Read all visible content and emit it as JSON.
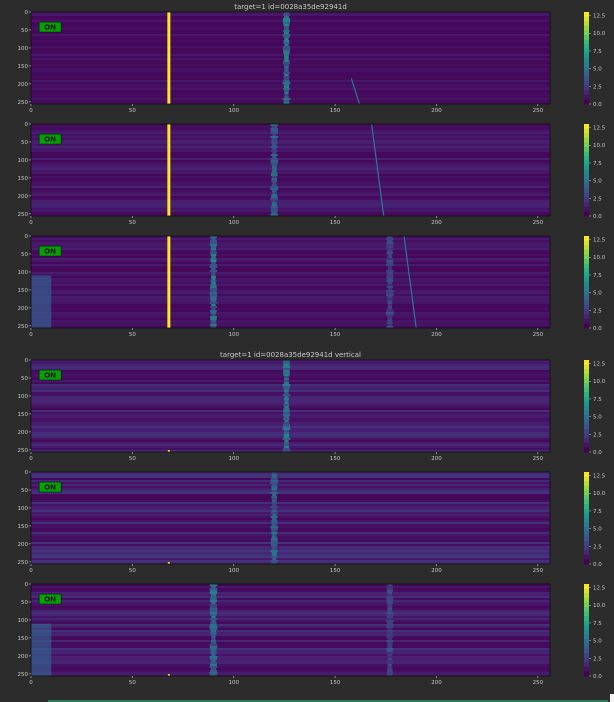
{
  "colors": {
    "background": "#2c2c2c",
    "viridis_low": "#440154",
    "viridis_high": "#fde725",
    "on_badge_bg": "#00a000",
    "axis_text": "#c8c8c8"
  },
  "chart_data": [
    {
      "type": "heatmap",
      "title": "target=1  id=0028a35de92941d",
      "badge": "ON",
      "x_ticks": [
        "0",
        "50",
        "100",
        "150",
        "200",
        "250"
      ],
      "y_ticks": [
        "0",
        "50",
        "100",
        "150",
        "200",
        "250"
      ],
      "xlim": [
        0,
        256
      ],
      "ylim": [
        0,
        256
      ],
      "colorbar": {
        "ticks": [
          "12.5",
          "10.0",
          "7.5",
          "5.0",
          "2.5",
          "0.0"
        ],
        "range": [
          0,
          13
        ]
      },
      "features": {
        "yellow_column_x": 68,
        "bright_bands": [
          {
            "x": 126,
            "intensity": 0.55
          }
        ],
        "diagonal_lines": [
          [
            158,
            185,
            162,
            256
          ]
        ],
        "left_edge_glow": false,
        "base_noise": 0.08
      }
    },
    {
      "type": "heatmap",
      "title": "",
      "badge": "ON",
      "x_ticks": [
        "0",
        "50",
        "100",
        "150",
        "200",
        "250"
      ],
      "y_ticks": [
        "0",
        "50",
        "100",
        "150",
        "200",
        "250"
      ],
      "xlim": [
        0,
        256
      ],
      "ylim": [
        0,
        256
      ],
      "colorbar": {
        "ticks": [
          "12.5",
          "10.0",
          "7.5",
          "5.0",
          "2.5",
          "0.0"
        ],
        "range": [
          0,
          13
        ]
      },
      "features": {
        "yellow_column_x": 68,
        "bright_bands": [
          {
            "x": 120,
            "intensity": 0.45
          }
        ],
        "diagonal_lines": [
          [
            168,
            0,
            174,
            256
          ]
        ],
        "left_edge_glow": false,
        "base_noise": 0.12
      }
    },
    {
      "type": "heatmap",
      "title": "",
      "badge": "ON",
      "x_ticks": [
        "0",
        "50",
        "100",
        "150",
        "200",
        "250"
      ],
      "y_ticks": [
        "0",
        "50",
        "100",
        "150",
        "200",
        "250"
      ],
      "xlim": [
        0,
        256
      ],
      "ylim": [
        0,
        256
      ],
      "colorbar": {
        "ticks": [
          "12.5",
          "10.0",
          "7.5",
          "5.0",
          "2.5",
          "0.0"
        ],
        "range": [
          0,
          13
        ]
      },
      "features": {
        "yellow_column_x": 68,
        "bright_bands": [
          {
            "x": 90,
            "intensity": 0.55
          },
          {
            "x": 177,
            "intensity": 0.3
          }
        ],
        "diagonal_lines": [
          [
            184,
            0,
            190,
            256
          ]
        ],
        "left_edge_glow": true,
        "base_noise": 0.1
      }
    },
    {
      "type": "heatmap",
      "title": "target=1  id=0028a35de92941d vertical",
      "badge": "ON",
      "x_ticks": [
        "0",
        "50",
        "100",
        "150",
        "200",
        "250"
      ],
      "y_ticks": [
        "0",
        "50",
        "100",
        "150",
        "200",
        "250"
      ],
      "xlim": [
        0,
        256
      ],
      "ylim": [
        0,
        256
      ],
      "colorbar": {
        "ticks": [
          "12.5",
          "10.0",
          "7.5",
          "5.0",
          "2.5",
          "0.0"
        ],
        "range": [
          0,
          13
        ]
      },
      "features": {
        "yellow_column_x": null,
        "bright_bands": [
          {
            "x": 126,
            "intensity": 0.55
          }
        ],
        "diagonal_lines": [],
        "left_edge_glow": false,
        "base_noise": 0.18
      }
    },
    {
      "type": "heatmap",
      "title": "",
      "badge": "ON",
      "x_ticks": [
        "0",
        "50",
        "100",
        "150",
        "200",
        "250"
      ],
      "y_ticks": [
        "0",
        "50",
        "100",
        "150",
        "200",
        "250"
      ],
      "xlim": [
        0,
        256
      ],
      "ylim": [
        0,
        256
      ],
      "colorbar": {
        "ticks": [
          "12.5",
          "10.0",
          "7.5",
          "5.0",
          "2.5",
          "0.0"
        ],
        "range": [
          0,
          13
        ]
      },
      "features": {
        "yellow_column_x": null,
        "bright_bands": [
          {
            "x": 120,
            "intensity": 0.45
          }
        ],
        "diagonal_lines": [],
        "left_edge_glow": false,
        "base_noise": 0.2
      }
    },
    {
      "type": "heatmap",
      "title": "",
      "badge": "ON",
      "x_ticks": [
        "0",
        "50",
        "100",
        "150",
        "200",
        "250"
      ],
      "y_ticks": [
        "0",
        "50",
        "100",
        "150",
        "200",
        "250"
      ],
      "xlim": [
        0,
        256
      ],
      "ylim": [
        0,
        256
      ],
      "colorbar": {
        "ticks": [
          "12.5",
          "10.0",
          "7.5",
          "5.0",
          "2.5",
          "0.0"
        ],
        "range": [
          0,
          13
        ]
      },
      "features": {
        "yellow_column_x": null,
        "bright_bands": [
          {
            "x": 90,
            "intensity": 0.5
          },
          {
            "x": 177,
            "intensity": 0.3
          }
        ],
        "diagonal_lines": [],
        "left_edge_glow": true,
        "base_noise": 0.18
      }
    }
  ]
}
